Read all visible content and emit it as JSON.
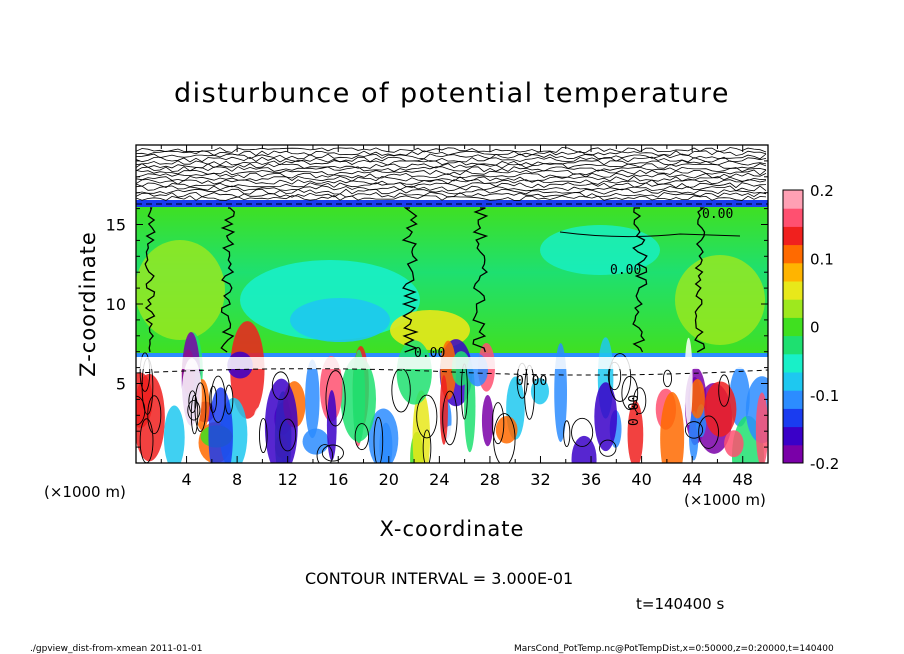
{
  "chart_data": {
    "type": "heatmap",
    "title": "disturbunce of potential temperature",
    "xlabel": "X-coordinate",
    "ylabel": "Z-coordinate",
    "x_unit": "(×1000 m)",
    "y_unit": "(×1000 m)",
    "xlim": [
      0,
      50
    ],
    "ylim": [
      0,
      20
    ],
    "x_ticks": [
      "4",
      "8",
      "12",
      "16",
      "20",
      "24",
      "28",
      "32",
      "36",
      "40",
      "44",
      "48"
    ],
    "y_ticks": [
      "5",
      "10",
      "15"
    ],
    "colorbar": {
      "range": [
        -0.2,
        0.2
      ],
      "ticks": [
        "0.2",
        "0.1",
        "0",
        "-0.1",
        "-0.2"
      ],
      "colors": [
        "#7a00a8",
        "#3a00c8",
        "#1a3cf0",
        "#2c8cff",
        "#1ec8f0",
        "#18f0c8",
        "#1ee070",
        "#40e020",
        "#9ee81e",
        "#e8e81a",
        "#ffb400",
        "#ff6a00",
        "#f0201e",
        "#ff5070",
        "#ffa0b4"
      ]
    },
    "contour_interval": "CONTOUR INTERVAL = 3.000E-01",
    "contour_labels": [
      "0.00",
      "0.00",
      "0.00",
      "0.00",
      "0.00"
    ],
    "time": "t=140400  s",
    "footer_left": "./gpview_dist-from-xmean  2011-01-01",
    "footer_right": "MarsCond_PotTemp.nc@PotTempDist,x=0:50000,z=0:20000,t=140400"
  }
}
